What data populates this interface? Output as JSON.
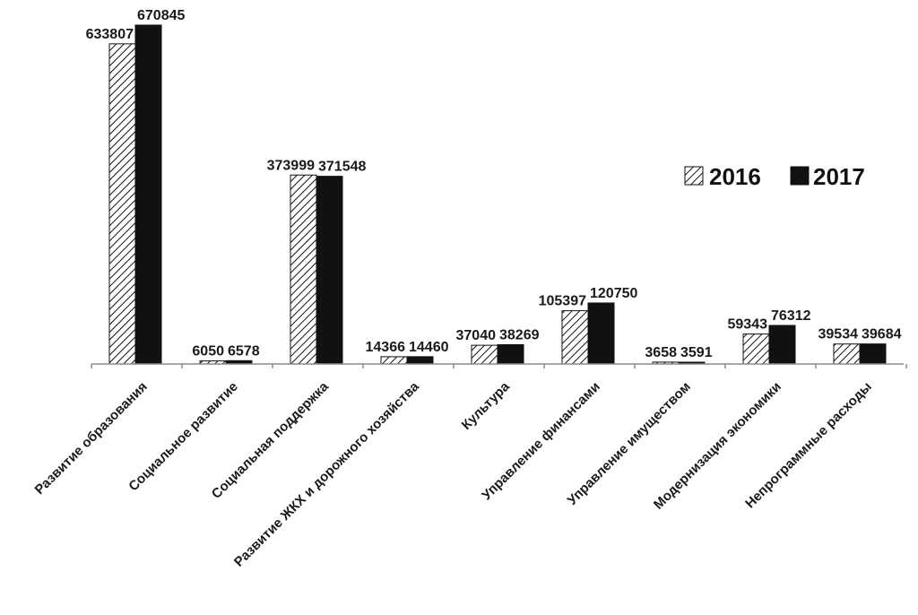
{
  "chart_data": {
    "type": "bar",
    "categories": [
      "Развитие образования",
      "Социальное развитие",
      "Социальная поддержка",
      "Развитие ЖКХ и дорожного хозяйства",
      "Культура",
      "Управление финансами",
      "Управление имуществом",
      "Модернизация экономики",
      "Непрограммные расходы"
    ],
    "series": [
      {
        "name": "2016",
        "pattern": "hatched",
        "values": [
          633807,
          6050,
          373999,
          14366,
          37040,
          105397,
          3658,
          59343,
          39534
        ]
      },
      {
        "name": "2017",
        "color": "#111111",
        "values": [
          670845,
          6578,
          371548,
          14460,
          38269,
          120750,
          3591,
          76312,
          39684
        ]
      }
    ],
    "ylim": [
      0,
      670845
    ],
    "grid": false,
    "legend_position": "right"
  }
}
